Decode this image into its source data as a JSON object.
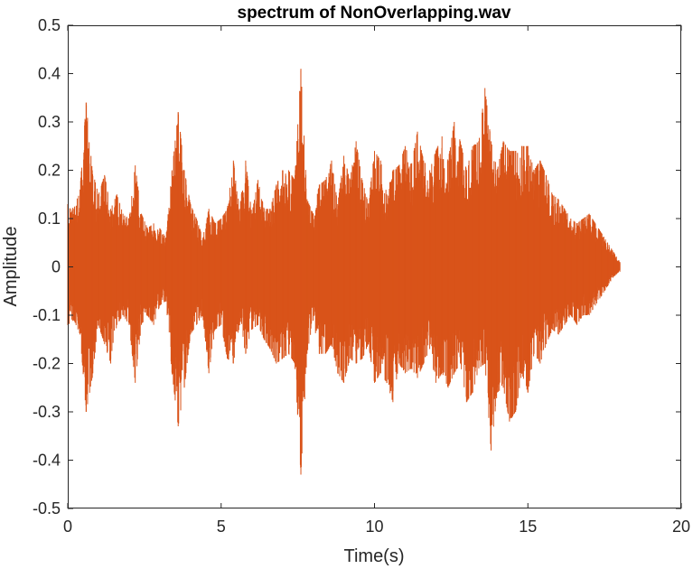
{
  "chart_data": {
    "type": "line",
    "title": "spectrum of NonOverlapping.wav",
    "xlabel": "Time(s)",
    "ylabel": "Amplitude",
    "xlim": [
      0,
      20
    ],
    "ylim": [
      -0.5,
      0.5
    ],
    "xticks": [
      "0",
      "5",
      "10",
      "15",
      "20"
    ],
    "yticks": [
      "0.5",
      "0.4",
      "0.3",
      "0.2",
      "0.1",
      "0",
      "-0.1",
      "-0.2",
      "-0.3",
      "-0.4",
      "-0.5"
    ],
    "grid": false,
    "series": [
      {
        "color": "#D95319",
        "x": [
          0,
          0.2,
          0.4,
          0.6,
          0.8,
          1.0,
          1.2,
          1.4,
          1.6,
          1.8,
          2.0,
          2.2,
          2.4,
          2.6,
          2.8,
          3.0,
          3.2,
          3.4,
          3.6,
          3.8,
          4.0,
          4.2,
          4.4,
          4.6,
          4.8,
          5.0,
          5.2,
          5.4,
          5.6,
          5.8,
          6.0,
          6.2,
          6.4,
          6.6,
          6.8,
          7.0,
          7.2,
          7.4,
          7.6,
          7.8,
          8.0,
          8.2,
          8.4,
          8.6,
          8.8,
          9.0,
          9.2,
          9.4,
          9.6,
          9.8,
          10.0,
          10.2,
          10.4,
          10.6,
          10.8,
          11.0,
          11.2,
          11.4,
          11.6,
          11.8,
          12.0,
          12.2,
          12.4,
          12.6,
          12.8,
          13.0,
          13.2,
          13.4,
          13.6,
          13.8,
          14.0,
          14.2,
          14.4,
          14.6,
          14.8,
          15.0,
          15.2,
          15.4,
          15.6,
          15.8,
          16.0,
          16.2,
          16.4,
          16.6,
          16.8,
          17.0,
          17.2,
          17.4,
          17.6,
          17.8,
          18.0
        ],
        "y_max": [
          0.13,
          0.12,
          0.16,
          0.34,
          0.2,
          0.15,
          0.19,
          0.12,
          0.15,
          0.11,
          0.1,
          0.21,
          0.11,
          0.08,
          0.09,
          0.08,
          0.06,
          0.2,
          0.32,
          0.2,
          0.13,
          0.1,
          0.06,
          0.12,
          0.09,
          0.1,
          0.12,
          0.22,
          0.12,
          0.22,
          0.11,
          0.18,
          0.12,
          0.12,
          0.17,
          0.2,
          0.2,
          0.18,
          0.41,
          0.14,
          0.11,
          0.17,
          0.18,
          0.22,
          0.13,
          0.23,
          0.18,
          0.26,
          0.18,
          0.13,
          0.24,
          0.22,
          0.15,
          0.2,
          0.21,
          0.25,
          0.21,
          0.28,
          0.22,
          0.2,
          0.24,
          0.27,
          0.22,
          0.3,
          0.26,
          0.2,
          0.25,
          0.26,
          0.37,
          0.26,
          0.2,
          0.26,
          0.24,
          0.24,
          0.25,
          0.25,
          0.2,
          0.22,
          0.19,
          0.15,
          0.14,
          0.12,
          0.1,
          0.09,
          0.1,
          0.11,
          0.09,
          0.07,
          0.05,
          0.03,
          0.01
        ],
        "y_min": [
          -0.12,
          -0.11,
          -0.14,
          -0.3,
          -0.23,
          -0.12,
          -0.16,
          -0.2,
          -0.12,
          -0.1,
          -0.12,
          -0.24,
          -0.12,
          -0.1,
          -0.12,
          -0.08,
          -0.07,
          -0.22,
          -0.33,
          -0.25,
          -0.14,
          -0.12,
          -0.1,
          -0.22,
          -0.13,
          -0.12,
          -0.19,
          -0.2,
          -0.12,
          -0.18,
          -0.13,
          -0.12,
          -0.15,
          -0.17,
          -0.2,
          -0.19,
          -0.18,
          -0.2,
          -0.43,
          -0.18,
          -0.11,
          -0.18,
          -0.18,
          -0.16,
          -0.22,
          -0.24,
          -0.19,
          -0.2,
          -0.19,
          -0.16,
          -0.24,
          -0.22,
          -0.24,
          -0.28,
          -0.2,
          -0.22,
          -0.21,
          -0.23,
          -0.2,
          -0.17,
          -0.24,
          -0.22,
          -0.25,
          -0.22,
          -0.2,
          -0.28,
          -0.26,
          -0.21,
          -0.2,
          -0.38,
          -0.26,
          -0.25,
          -0.32,
          -0.3,
          -0.22,
          -0.26,
          -0.18,
          -0.2,
          -0.16,
          -0.13,
          -0.14,
          -0.12,
          -0.1,
          -0.12,
          -0.1,
          -0.1,
          -0.08,
          -0.06,
          -0.04,
          -0.02,
          -0.01
        ]
      }
    ]
  }
}
